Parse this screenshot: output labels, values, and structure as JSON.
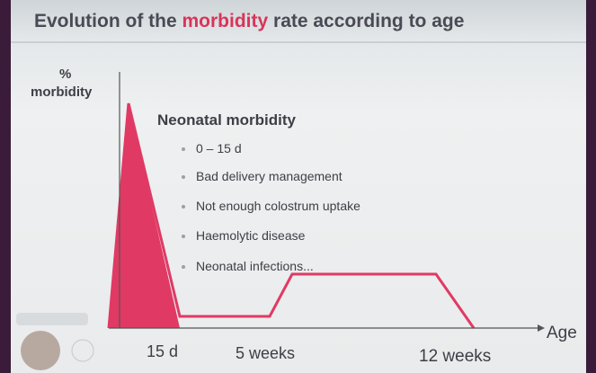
{
  "header": {
    "title_start": "Evolution of the",
    "title_highlight": "morbidity",
    "title_end": "rate according to age"
  },
  "axes": {
    "y_label_unit": "%",
    "y_label": "morbidity",
    "x_label": "Age"
  },
  "x_labels": [
    "15 d",
    "5 weeks",
    "12 weeks"
  ],
  "box": {
    "heading": "Neonatal morbidity",
    "bullets": [
      "0 – 15 d",
      "Bad delivery management",
      "Not enough colostrum uptake",
      "Haemolytic disease",
      "Neonatal infections..."
    ]
  }
}
